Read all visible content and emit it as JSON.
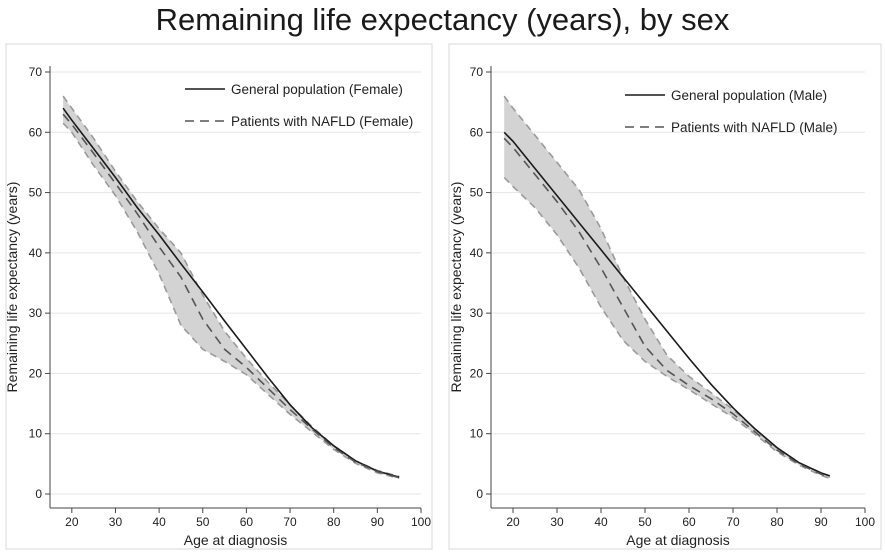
{
  "figure_title": "Remaining life expectancy (years), by sex",
  "chart_data": [
    {
      "type": "line",
      "title": "",
      "xlabel": "Age at diagnosis",
      "ylabel": "Remaining life expectancy (years)",
      "xlim": [
        15,
        100
      ],
      "ylim": [
        0,
        70
      ],
      "xticks": [
        20,
        30,
        40,
        50,
        60,
        70,
        80,
        90,
        100
      ],
      "yticks": [
        0,
        10,
        20,
        30,
        40,
        50,
        60,
        70
      ],
      "grid": true,
      "legend_position": "top-right",
      "series": [
        {
          "name": "General population (Female)",
          "style": "solid",
          "color": "#1a1a1a",
          "x": [
            18,
            20,
            25,
            30,
            35,
            40,
            45,
            50,
            55,
            60,
            65,
            70,
            75,
            80,
            85,
            90,
            95
          ],
          "y": [
            64,
            62,
            57.3,
            52.5,
            47.5,
            43,
            38.2,
            33.5,
            28.7,
            24,
            19.3,
            14.8,
            11,
            8,
            5.5,
            3.8,
            2.8
          ]
        },
        {
          "name": "Patients with NAFLD (Female)",
          "style": "dashed",
          "color": "#555555",
          "x": [
            18,
            20,
            25,
            30,
            35,
            40,
            45,
            50,
            55,
            60,
            65,
            70,
            75,
            80,
            85,
            90,
            95
          ],
          "y": [
            63,
            61.3,
            56.5,
            51.5,
            46.5,
            41,
            36,
            29,
            24,
            21,
            17.5,
            14,
            10.8,
            7.7,
            5.3,
            3.7,
            2.7
          ],
          "ci_upper": [
            66,
            64,
            59,
            53.5,
            48.5,
            44,
            40,
            33,
            27,
            22.5,
            18.5,
            14.8,
            11.2,
            8,
            5.5,
            3.9,
            2.9
          ],
          "ci_lower": [
            61.5,
            60,
            54.5,
            49.5,
            43.5,
            36.5,
            28,
            24,
            22,
            19.8,
            16.5,
            13.2,
            10.3,
            7.4,
            5.1,
            3.5,
            2.6
          ]
        }
      ]
    },
    {
      "type": "line",
      "title": "",
      "xlabel": "Age at diagnosis",
      "ylabel": "Remaining life expectancy (years)",
      "xlim": [
        15,
        100
      ],
      "ylim": [
        0,
        70
      ],
      "xticks": [
        20,
        30,
        40,
        50,
        60,
        70,
        80,
        90,
        100
      ],
      "yticks": [
        0,
        10,
        20,
        30,
        40,
        50,
        60,
        70
      ],
      "grid": true,
      "legend_position": "top-right",
      "series": [
        {
          "name": "General population (Male)",
          "style": "solid",
          "color": "#1a1a1a",
          "x": [
            18,
            20,
            25,
            30,
            35,
            40,
            45,
            50,
            55,
            60,
            65,
            70,
            75,
            80,
            85,
            90,
            92
          ],
          "y": [
            60,
            58.5,
            54,
            49.5,
            45,
            40.5,
            36,
            31.5,
            27,
            22.5,
            18.2,
            14.3,
            10.8,
            7.7,
            5.2,
            3.5,
            3
          ]
        },
        {
          "name": "Patients with NAFLD (Male)",
          "style": "dashed",
          "color": "#555555",
          "x": [
            18,
            20,
            25,
            30,
            35,
            40,
            45,
            50,
            55,
            60,
            65,
            70,
            75,
            80,
            85,
            90,
            92
          ],
          "y": [
            59,
            57.5,
            53,
            48.5,
            43.5,
            37.5,
            31,
            24.5,
            20.5,
            18,
            15.8,
            13.3,
            10.3,
            7.3,
            5,
            3.3,
            2.8
          ],
          "ci_upper": [
            66,
            64,
            59.5,
            55,
            50.5,
            44,
            36,
            29,
            23,
            19.5,
            16.8,
            14,
            10.8,
            7.6,
            5.2,
            3.5,
            3
          ],
          "ci_lower": [
            52.5,
            51,
            47.5,
            43,
            37.5,
            31,
            25.5,
            22,
            19.5,
            17.3,
            15,
            12.7,
            9.9,
            7,
            4.8,
            3.1,
            2.6
          ]
        }
      ]
    }
  ]
}
